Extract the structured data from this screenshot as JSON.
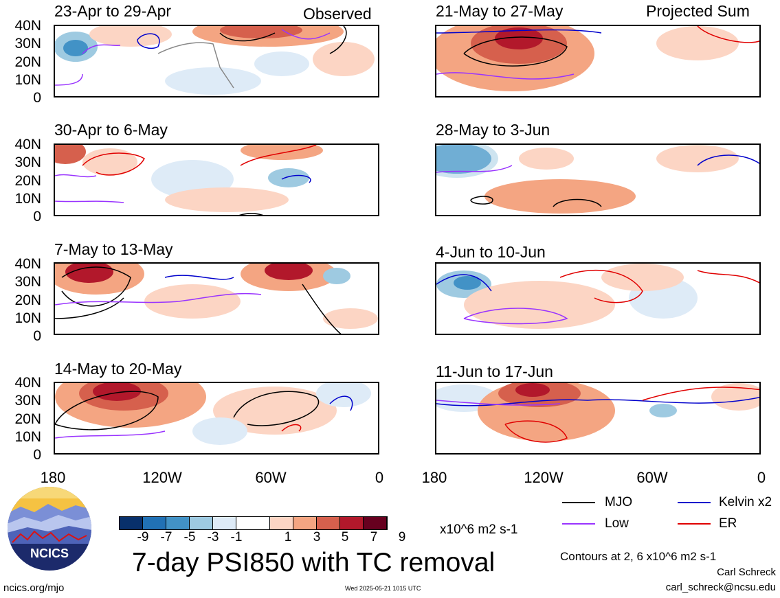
{
  "observed_label": "Observed",
  "projected_label": "Projected Sum",
  "panels": [
    {
      "title": "23-Apr to 29-Apr"
    },
    {
      "title": "30-Apr to 6-May"
    },
    {
      "title": "7-May to 13-May"
    },
    {
      "title": "14-May to 20-May"
    },
    {
      "title": "21-May to 27-May"
    },
    {
      "title": "28-May to 3-Jun"
    },
    {
      "title": "4-Jun to 10-Jun"
    },
    {
      "title": "11-Jun to 17-Jun"
    }
  ],
  "lat_labels": [
    "40N",
    "30N",
    "20N",
    "10N",
    "0"
  ],
  "lon_labels": [
    "180",
    "120W",
    "60W",
    "0"
  ],
  "colorbar": {
    "colors": [
      "#08306b",
      "#2171b5",
      "#4292c6",
      "#9ecae1",
      "#deebf7",
      "#ffffff",
      "#fcd5c4",
      "#f4a582",
      "#d6604d",
      "#b2182b",
      "#67001f"
    ],
    "labels": [
      "-9",
      "-7",
      "-5",
      "-3",
      "-1",
      "1",
      "3",
      "5",
      "7",
      "9"
    ],
    "units": "x10^6 m2 s-1"
  },
  "legend": [
    {
      "label": "MJO",
      "color": "#000000"
    },
    {
      "label": "Kelvin x2",
      "color": "#0000cc"
    },
    {
      "label": "Low",
      "color": "#9933ff"
    },
    {
      "label": "ER",
      "color": "#e00000"
    }
  ],
  "main_title": "7-day PSI850 with TC removal",
  "contours_note": "Contours at 2, 6 x10^6 m2 s-1",
  "author": "Carl Schreck",
  "email": "carl_schreck@ncsu.edu",
  "website": "ncics.org/mjo",
  "timestamp": "Wed 2025-05-21 1015 UTC",
  "logo_text": "NCICS"
}
